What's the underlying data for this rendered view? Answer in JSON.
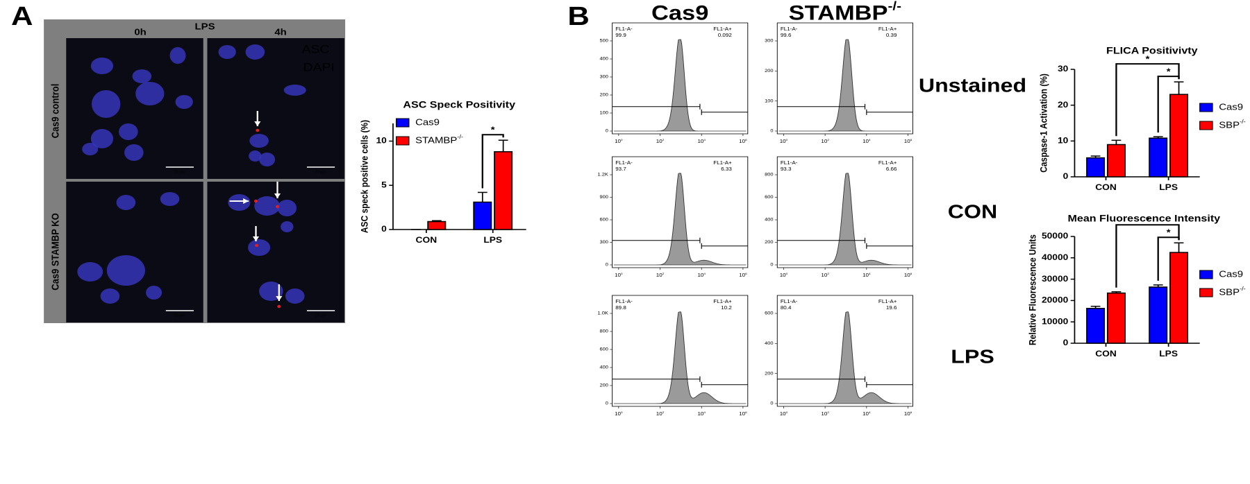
{
  "panel_a": {
    "label": "A",
    "top_header": "LPS",
    "columns": [
      "0h",
      "4h"
    ],
    "rows": [
      "Cas9 control",
      "Cas9 STAMBP KO"
    ],
    "legend": [
      "ASC",
      "DAPI"
    ],
    "scale_bar": "20 µm"
  },
  "panel_b": {
    "label": "B",
    "columns": [
      {
        "name": "Cas9"
      },
      {
        "name": "STAMBP",
        "sup": "-/-"
      }
    ],
    "rows": [
      "Unstained",
      "CON",
      "LPS"
    ],
    "gate_neg": "FL1-A-",
    "gate_pos": "FL1-A+",
    "x_tick_base": "10",
    "x_tick_exponents": [
      "0",
      "2",
      "4",
      "6"
    ],
    "plots": [
      [
        {
          "neg": "99.9",
          "pos": "0.092",
          "yticks": [
            "0",
            "100",
            "200",
            "300",
            "400",
            "500"
          ]
        },
        {
          "neg": "99.6",
          "pos": "0.39",
          "yticks": [
            "0",
            "100",
            "200",
            "300"
          ]
        }
      ],
      [
        {
          "neg": "93.7",
          "pos": "6.33",
          "yticks": [
            "0",
            "300",
            "600",
            "900",
            "1.2K"
          ]
        },
        {
          "neg": "93.3",
          "pos": "6.66",
          "yticks": [
            "0",
            "200",
            "400",
            "600",
            "800"
          ]
        }
      ],
      [
        {
          "neg": "89.8",
          "pos": "10.2",
          "yticks": [
            "0",
            "200",
            "400",
            "600",
            "800",
            "1.0K"
          ]
        },
        {
          "neg": "80.4",
          "pos": "19.6",
          "yticks": [
            "0",
            "200",
            "400",
            "600"
          ]
        }
      ]
    ]
  },
  "chart_data": [
    {
      "type": "bar",
      "title": "ASC Speck Positivity",
      "y_label": "ASC speck positive cells (%)",
      "categories": [
        "CON",
        "LPS"
      ],
      "series": [
        {
          "name": "Cas9",
          "color": "#0000ff",
          "values": [
            0,
            3.1
          ],
          "errors": [
            0,
            1.1
          ]
        },
        {
          "name": "STAMBP",
          "name_sup": "-/-",
          "color": "#ff0000",
          "values": [
            0.9,
            8.8
          ],
          "errors": [
            0.1,
            1.3
          ]
        }
      ],
      "ylim": [
        0,
        12
      ],
      "yticks": [
        0,
        5,
        10
      ],
      "annotations": [
        "*"
      ]
    },
    {
      "type": "bar",
      "title": "FLICA Positivivty",
      "y_label": "Caspase-1 Activation (%)",
      "categories": [
        "CON",
        "LPS"
      ],
      "series": [
        {
          "name": "Cas9",
          "color": "#0000ff",
          "values": [
            5.3,
            10.8
          ],
          "errors": [
            0.5,
            0.4
          ]
        },
        {
          "name": "SBP",
          "name_sup": "-/-",
          "color": "#ff0000",
          "values": [
            9,
            23
          ],
          "errors": [
            1.2,
            3.5
          ]
        }
      ],
      "ylim": [
        0,
        30
      ],
      "yticks": [
        0,
        10,
        20,
        30
      ],
      "annotations": [
        "*",
        "*"
      ]
    },
    {
      "type": "bar",
      "title": "Mean Fluorescence Intensity",
      "y_label": "Relative Fluorescence Units",
      "categories": [
        "CON",
        "LPS"
      ],
      "series": [
        {
          "name": "Cas9",
          "color": "#0000ff",
          "values": [
            16300,
            26300
          ],
          "errors": [
            1000,
            1000
          ]
        },
        {
          "name": "SBP",
          "name_sup": "-/-",
          "color": "#ff0000",
          "values": [
            23500,
            42500
          ],
          "errors": [
            600,
            4500
          ]
        }
      ],
      "ylim": [
        0,
        50000
      ],
      "yticks": [
        0,
        10000,
        20000,
        30000,
        40000,
        50000
      ],
      "annotations": [
        "*",
        "*"
      ]
    }
  ]
}
